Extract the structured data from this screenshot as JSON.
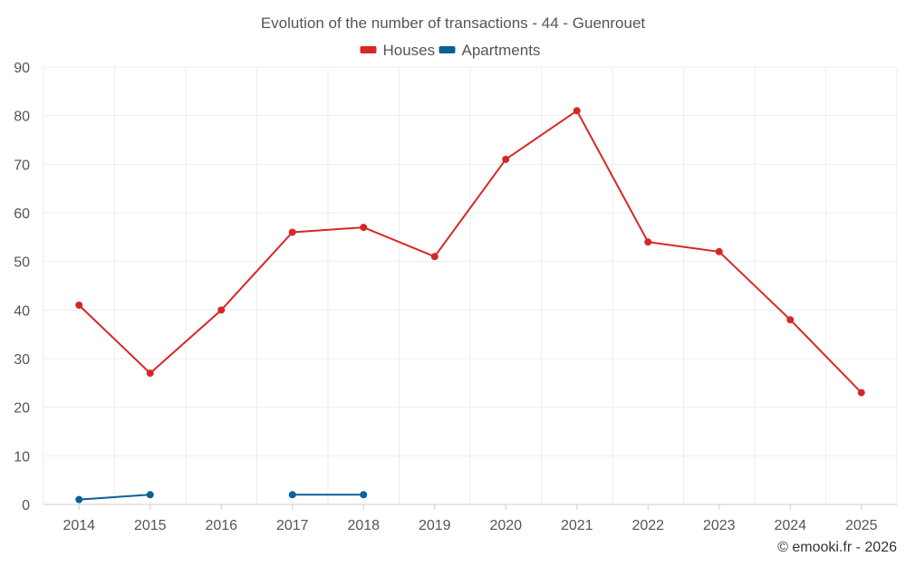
{
  "chart_data": {
    "type": "line",
    "title": "Evolution of the number of transactions - 44 - Guenrouet",
    "categories": [
      "2014",
      "2015",
      "2016",
      "2017",
      "2018",
      "2019",
      "2020",
      "2021",
      "2022",
      "2023",
      "2024",
      "2025"
    ],
    "ylim": [
      0,
      90
    ],
    "yticks": [
      0,
      10,
      20,
      30,
      40,
      50,
      60,
      70,
      80,
      90
    ],
    "grid": true,
    "legend_position": "top-center",
    "series": [
      {
        "name": "Houses",
        "color": "#d62728",
        "values": [
          41,
          27,
          40,
          56,
          57,
          51,
          71,
          81,
          54,
          52,
          38,
          23
        ]
      },
      {
        "name": "Apartments",
        "color": "#0b6096",
        "values": [
          1,
          2,
          null,
          2,
          2,
          null,
          null,
          null,
          null,
          null,
          null,
          null
        ]
      }
    ]
  },
  "credit": "© emooki.fr - 2026"
}
